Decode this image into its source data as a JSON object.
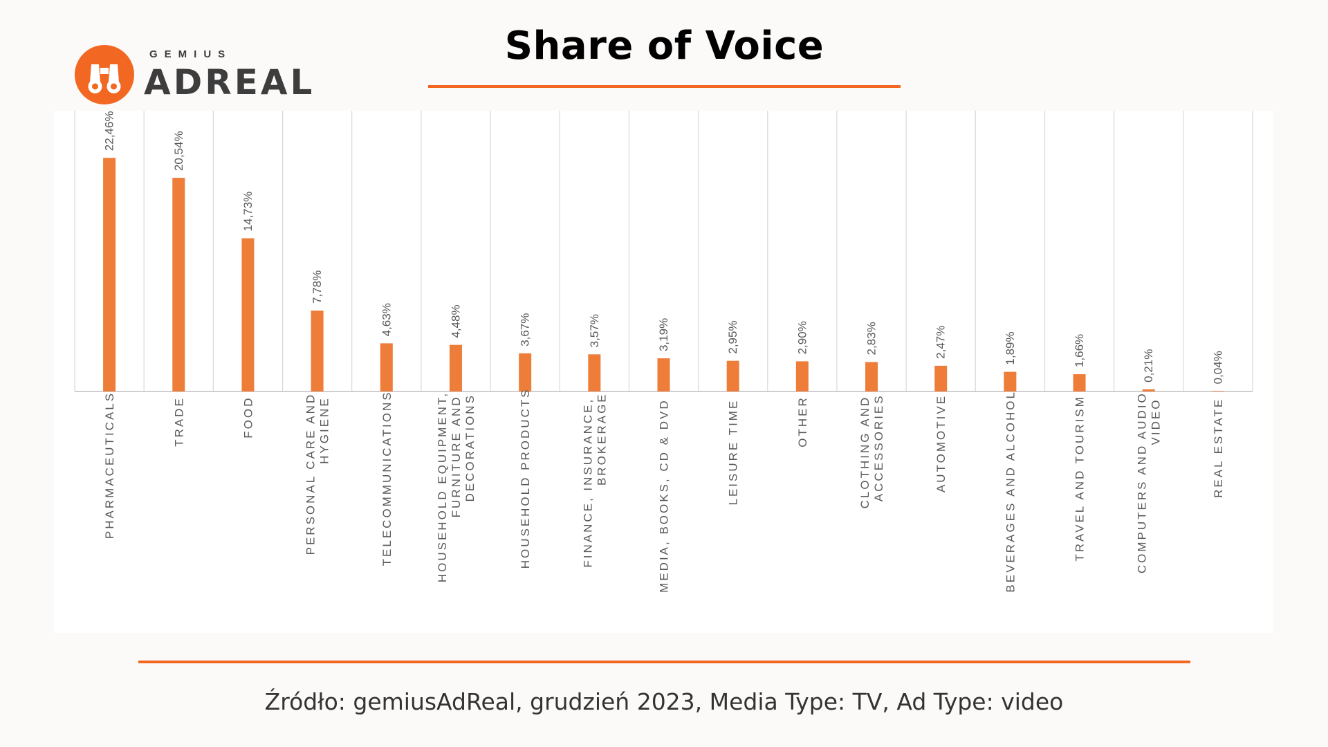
{
  "logo": {
    "brand": "GEMIUS",
    "name": "ADREAL",
    "icon": "binoculars-icon",
    "color": "#f26722"
  },
  "title": "Share of Voice",
  "source": "Źródło: gemiusAdReal, grudzień 2023, Media Type: TV, Ad Type: video",
  "colors": {
    "accent": "#f26722",
    "bar": "#ef7d3a",
    "text": "#595959",
    "grid": "#d9d9d9"
  },
  "chart_data": {
    "type": "bar",
    "title": "Share of Voice",
    "categories": [
      [
        "PHARMACEUTICALS"
      ],
      [
        "TRADE"
      ],
      [
        "FOOD"
      ],
      [
        "PERSONAL CARE AND",
        "HYGIENE"
      ],
      [
        "TELECOMMUNICATIONS"
      ],
      [
        "HOUSEHOLD EQUIPMENT,",
        "FURNITURE AND",
        "DECORATIONS"
      ],
      [
        "HOUSEHOLD PRODUCTS"
      ],
      [
        "FINANCE, INSURANCE,",
        "BROKERAGE"
      ],
      [
        "MEDIA, BOOKS, CD & DVD"
      ],
      [
        "LEISURE TIME"
      ],
      [
        "OTHER"
      ],
      [
        "CLOTHING AND",
        "ACCESSORIES"
      ],
      [
        "AUTOMOTIVE"
      ],
      [
        "BEVERAGES AND ALCOHOL"
      ],
      [
        "TRAVEL AND TOURISM"
      ],
      [
        "COMPUTERS AND AUDIO",
        "VIDEO"
      ],
      [
        "REAL ESTATE"
      ]
    ],
    "values": [
      22.46,
      20.54,
      14.73,
      7.78,
      4.63,
      4.48,
      3.67,
      3.57,
      3.19,
      2.95,
      2.9,
      2.83,
      2.47,
      1.89,
      1.66,
      0.21,
      0.04
    ],
    "data_labels": [
      "22,46%",
      "20,54%",
      "14,73%",
      "7,78%",
      "4,63%",
      "4,48%",
      "3,67%",
      "3,57%",
      "3,19%",
      "2,95%",
      "2,90%",
      "2,83%",
      "2,47%",
      "1,89%",
      "1,66%",
      "0,21%",
      "0,04%"
    ],
    "ylim": [
      0,
      25
    ],
    "xlabel": "",
    "ylabel": "",
    "grid": "vertical",
    "legend": "none"
  }
}
